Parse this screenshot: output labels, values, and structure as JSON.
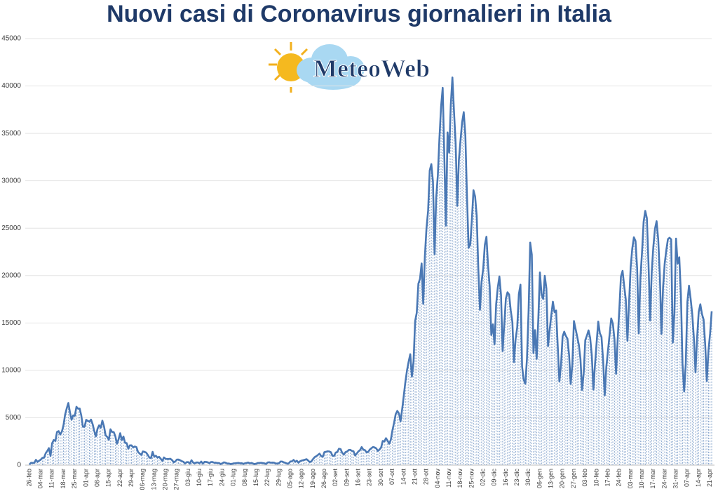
{
  "chart_data": {
    "type": "line",
    "title": "Nuovi casi di Coronavirus giornalieri in Italia",
    "color": "#4a78b4",
    "drop_lines": true,
    "ylim": [
      0,
      45000
    ],
    "yticks": [
      0,
      5000,
      10000,
      15000,
      20000,
      25000,
      30000,
      35000,
      40000,
      45000
    ],
    "categories": [
      "26-feb",
      null,
      null,
      null,
      null,
      null,
      null,
      "04-mar",
      null,
      null,
      null,
      null,
      null,
      null,
      "11-mar",
      null,
      null,
      null,
      null,
      null,
      null,
      "18-mar",
      null,
      null,
      null,
      null,
      null,
      null,
      "25-mar",
      null,
      null,
      null,
      null,
      null,
      null,
      "01-apr",
      null,
      null,
      null,
      null,
      null,
      null,
      "08-apr",
      null,
      null,
      null,
      null,
      null,
      null,
      "15-apr",
      null,
      null,
      null,
      null,
      null,
      null,
      "22-apr",
      null,
      null,
      null,
      null,
      null,
      null,
      "29-apr",
      null,
      null,
      null,
      null,
      null,
      null,
      "06-mag",
      null,
      null,
      null,
      null,
      null,
      null,
      "13-mag",
      null,
      null,
      null,
      null,
      null,
      null,
      "20-mag",
      null,
      null,
      null,
      null,
      null,
      null,
      "27-mag",
      null,
      null,
      null,
      null,
      null,
      null,
      "03-giu",
      null,
      null,
      null,
      null,
      null,
      null,
      "10-giu",
      null,
      null,
      null,
      null,
      null,
      null,
      "17-giu",
      null,
      null,
      null,
      null,
      null,
      null,
      "24-giu",
      null,
      null,
      null,
      null,
      null,
      null,
      "01-lug",
      null,
      null,
      null,
      null,
      null,
      null,
      "08-lug",
      null,
      null,
      null,
      null,
      null,
      null,
      "15-lug",
      null,
      null,
      null,
      null,
      null,
      null,
      "22-lug",
      null,
      null,
      null,
      null,
      null,
      null,
      "29-lug",
      null,
      null,
      null,
      null,
      null,
      null,
      "05-ago",
      null,
      null,
      null,
      null,
      null,
      null,
      "12-ago",
      null,
      null,
      null,
      null,
      null,
      null,
      "19-ago",
      null,
      null,
      null,
      null,
      null,
      null,
      "26-ago",
      null,
      null,
      null,
      null,
      null,
      null,
      "02-set",
      null,
      null,
      null,
      null,
      null,
      null,
      "09-set",
      null,
      null,
      null,
      null,
      null,
      null,
      "16-set",
      null,
      null,
      null,
      null,
      null,
      null,
      "23-set",
      null,
      null,
      null,
      null,
      null,
      null,
      "30-set",
      null,
      null,
      null,
      null,
      null,
      null,
      "07-ott",
      null,
      null,
      null,
      null,
      null,
      null,
      "14-ott",
      null,
      null,
      null,
      null,
      null,
      null,
      "21-ott",
      null,
      null,
      null,
      null,
      null,
      null,
      "28-ott",
      null,
      null,
      null,
      null,
      null,
      null,
      "04-nov",
      null,
      null,
      null,
      null,
      null,
      null,
      "11-nov",
      null,
      null,
      null,
      null,
      null,
      null,
      "18-nov",
      null,
      null,
      null,
      null,
      null,
      null,
      "25-nov",
      null,
      null,
      null,
      null,
      null,
      null,
      "02-dic",
      null,
      null,
      null,
      null,
      null,
      null,
      "09-dic",
      null,
      null,
      null,
      null,
      null,
      null,
      "16-dic",
      null,
      null,
      null,
      null,
      null,
      null,
      "23-dic",
      null,
      null,
      null,
      null,
      null,
      null,
      "30-dic",
      null,
      null,
      null,
      null,
      null,
      null,
      "06-gen",
      null,
      null,
      null,
      null,
      null,
      null,
      "13-gen",
      null,
      null,
      null,
      null,
      null,
      null,
      "20-gen",
      null,
      null,
      null,
      null,
      null,
      null,
      "27-gen",
      null,
      null,
      null,
      null,
      null,
      null,
      "03-feb",
      null,
      null,
      null,
      null,
      null,
      null,
      "10-feb",
      null,
      null,
      null,
      null,
      null,
      null,
      "17-feb",
      null,
      null,
      null,
      null,
      null,
      null,
      "24-feb",
      null,
      null,
      null,
      null,
      null,
      null,
      "03-mar",
      null,
      null,
      null,
      null,
      null,
      null,
      "10-mar",
      null,
      null,
      null,
      null,
      null,
      null,
      "17-mar",
      null,
      null,
      null,
      null,
      null,
      null,
      "24-mar",
      null,
      null,
      null,
      null,
      null,
      null,
      "31-mar",
      null,
      null,
      null,
      null,
      null,
      null,
      "07-apr",
      null,
      null,
      null,
      null,
      null,
      null,
      "14-apr",
      null,
      null,
      null,
      null,
      null,
      null,
      "21-apr",
      null
    ],
    "values": [
      78,
      250,
      238,
      240,
      561,
      347,
      466,
      587,
      769,
      778,
      1247,
      1492,
      1797,
      977,
      2313,
      2651,
      2547,
      3497,
      3590,
      3233,
      3526,
      4207,
      5322,
      5986,
      6557,
      5560,
      4789,
      5249,
      5210,
      6153,
      5959,
      5974,
      5217,
      4050,
      4053,
      4782,
      4668,
      4585,
      4805,
      4316,
      3599,
      3039,
      3836,
      4204,
      3951,
      4694,
      4092,
      3153,
      2972,
      2667,
      3786,
      3493,
      3491,
      3047,
      2256,
      2729,
      3370,
      2646,
      3021,
      2357,
      2324,
      1739,
      2091,
      2086,
      1872,
      1965,
      1900,
      1389,
      1221,
      1075,
      1444,
      1401,
      1327,
      1083,
      802,
      744,
      1402,
      888,
      992,
      789,
      875,
      675,
      451,
      813,
      665,
      642,
      652,
      669,
      531,
      300,
      397,
      584,
      593,
      516,
      416,
      355,
      178,
      318,
      321,
      177,
      518,
      270,
      197,
      280,
      283,
      202,
      379,
      163,
      346,
      338,
      301,
      210,
      329,
      333,
      251,
      262,
      224,
      218,
      122,
      190,
      296,
      259,
      175,
      174,
      126,
      142,
      187,
      201,
      223,
      235,
      192,
      208,
      138,
      193,
      229,
      276,
      188,
      234,
      169,
      114,
      162,
      230,
      233,
      249,
      219,
      190,
      129,
      282,
      306,
      252,
      275,
      255,
      170,
      181,
      202,
      386,
      379,
      295,
      239,
      159,
      190,
      384,
      402,
      552,
      347,
      463,
      259,
      412,
      481,
      523,
      574,
      629,
      479,
      320,
      403,
      642,
      845,
      947,
      1071,
      1210,
      953,
      878,
      1367,
      1411,
      1462,
      1444,
      1365,
      996,
      978,
      1326,
      1397,
      1733,
      1695,
      1297,
      1108,
      1370,
      1434,
      1597,
      1616,
      1501,
      1458,
      1008,
      1229,
      1452,
      1585,
      1907,
      1638,
      1587,
      1350,
      1392,
      1640,
      1786,
      1912,
      1869,
      1766,
      1494,
      1648,
      1851,
      2548,
      2499,
      2844,
      2578,
      2257,
      2677,
      3678,
      4458,
      5372,
      5724,
      5456,
      4619,
      5901,
      7332,
      8804,
      10010,
      10925,
      11705,
      9338,
      10874,
      15199,
      16079,
      19143,
      19644,
      21273,
      17012,
      21994,
      24991,
      26831,
      31084,
      31758,
      29907,
      22253,
      28244,
      30550,
      34505,
      37809,
      39811,
      32616,
      25271,
      35098,
      32961,
      37978,
      40902,
      37255,
      33979,
      27354,
      32191,
      34283,
      36176,
      37242,
      34767,
      28337,
      22930,
      23232,
      25853,
      29003,
      28352,
      26323,
      20648,
      16377,
      19350,
      20709,
      23225,
      24099,
      21052,
      18887,
      13720,
      14842,
      12756,
      16999,
      18727,
      19903,
      17938,
      12030,
      14844,
      17572,
      18236,
      17992,
      16308,
      15104,
      10872,
      13318,
      14522,
      18040,
      19037,
      10407,
      9000,
      8585,
      11210,
      16202,
      23477,
      22211,
      11831,
      14245,
      11212,
      15378,
      20331,
      18020,
      17533,
      19978,
      18627,
      12545,
      14242,
      15774,
      17246,
      16146,
      16310,
      12545,
      8824,
      10497,
      13571,
      14078,
      13633,
      13331,
      11629,
      8561,
      10593,
      15204,
      14372,
      13574,
      12715,
      11252,
      7925,
      9660,
      13189,
      13659,
      14218,
      13442,
      11641,
      7970,
      10630,
      12956,
      15146,
      13908,
      13532,
      11068,
      7351,
      10386,
      12074,
      13762,
      15479,
      14931,
      13314,
      9630,
      13314,
      16424,
      19886,
      20499,
      18916,
      17455,
      13114,
      17083,
      20884,
      22865,
      24036,
      23641,
      20765,
      13902,
      19749,
      22409,
      25673,
      26824,
      26062,
      21315,
      15267,
      20396,
      23059,
      24935,
      25735,
      23832,
      20159,
      13846,
      18765,
      21267,
      22702,
      23839,
      23987,
      23820,
      12916,
      16017,
      23904,
      21261,
      21932,
      18025,
      10680,
      7767,
      10680,
      17221,
      18938,
      17567,
      15943,
      13447,
      9789,
      13447,
      16168,
      16974,
      15943,
      15370,
      12694,
      8864,
      12074,
      13844,
      16232
    ]
  },
  "logo": {
    "text": "MeteoWeb"
  }
}
